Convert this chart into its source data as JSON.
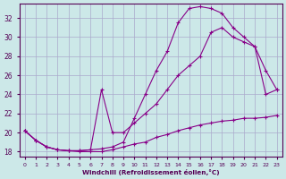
{
  "xlabel": "Windchill (Refroidissement éolien,°C)",
  "background_color": "#cce8e8",
  "grid_color": "#aaaacc",
  "line_color": "#880088",
  "xlim": [
    -0.5,
    23.5
  ],
  "ylim": [
    17.5,
    33.5
  ],
  "yticks": [
    18,
    20,
    22,
    24,
    26,
    28,
    30,
    32
  ],
  "xticks": [
    0,
    1,
    2,
    3,
    4,
    5,
    6,
    7,
    8,
    9,
    10,
    11,
    12,
    13,
    14,
    15,
    16,
    17,
    18,
    19,
    20,
    21,
    22,
    23
  ],
  "line1_x": [
    0,
    1,
    2,
    3,
    4,
    5,
    6,
    7,
    8,
    9,
    10,
    11,
    12,
    13,
    14,
    15,
    16,
    17,
    18,
    19,
    20,
    21,
    22,
    23
  ],
  "line1_y": [
    20.2,
    19.2,
    18.5,
    18.2,
    18.1,
    18.1,
    18.2,
    18.3,
    18.5,
    19.0,
    21.5,
    24.0,
    26.5,
    28.5,
    31.5,
    33.0,
    33.2,
    33.0,
    32.5,
    31.0,
    30.0,
    29.0,
    26.5,
    24.5
  ],
  "line2_x": [
    0,
    1,
    2,
    3,
    4,
    5,
    6,
    7,
    8,
    9,
    10,
    11,
    12,
    13,
    14,
    15,
    16,
    17,
    18,
    19,
    20,
    21,
    22,
    23
  ],
  "line2_y": [
    20.2,
    19.2,
    18.5,
    18.2,
    18.1,
    18.1,
    18.2,
    24.5,
    20.0,
    20.0,
    21.0,
    22.0,
    23.0,
    24.5,
    26.0,
    27.0,
    28.0,
    30.5,
    31.0,
    30.0,
    29.5,
    29.0,
    24.0,
    24.5
  ],
  "line3_x": [
    0,
    1,
    2,
    3,
    4,
    5,
    6,
    7,
    8,
    9,
    10,
    11,
    12,
    13,
    14,
    15,
    16,
    17,
    18,
    19,
    20,
    21,
    22,
    23
  ],
  "line3_y": [
    20.2,
    19.2,
    18.5,
    18.2,
    18.1,
    18.0,
    18.0,
    18.0,
    18.2,
    18.5,
    18.8,
    19.0,
    19.5,
    19.8,
    20.2,
    20.5,
    20.8,
    21.0,
    21.2,
    21.3,
    21.5,
    21.5,
    21.6,
    21.8
  ]
}
